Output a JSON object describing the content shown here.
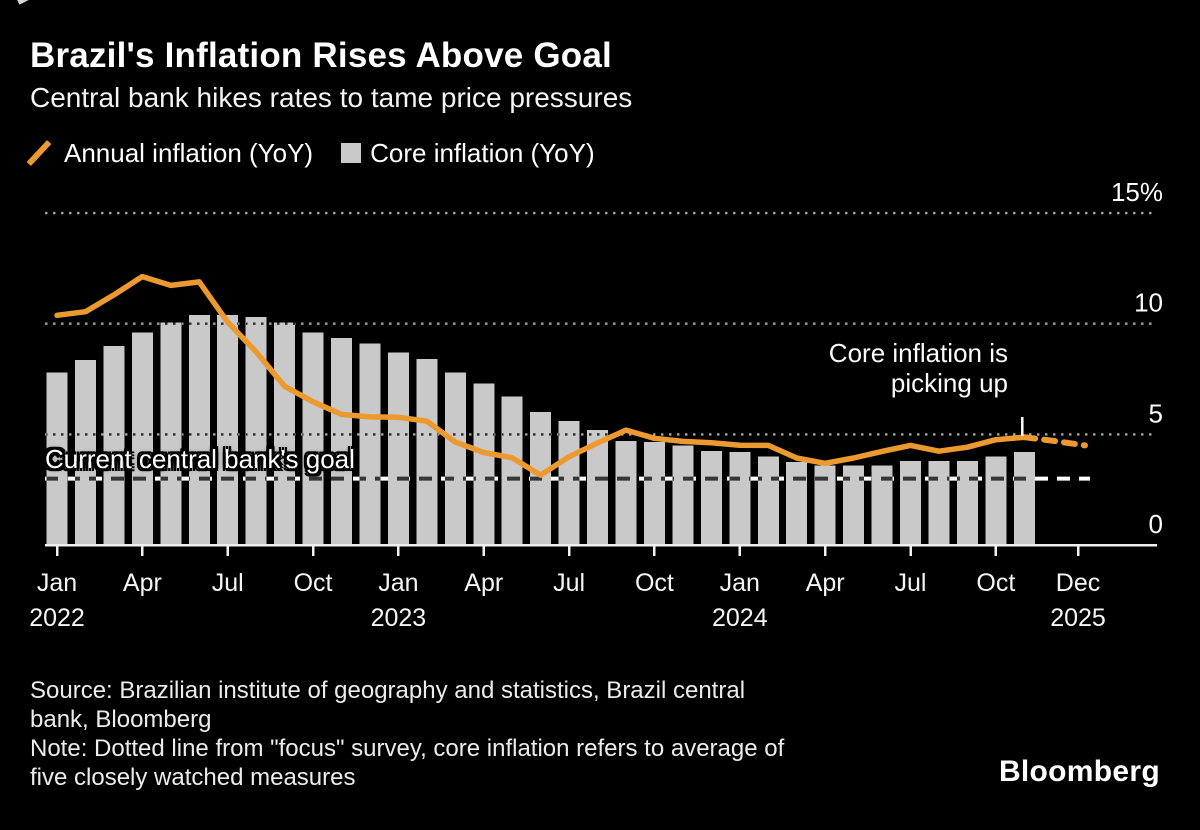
{
  "header": {
    "title": "Brazil's Inflation Rises Above Goal",
    "subtitle": "Central bank hikes rates to tame price pressures"
  },
  "legend": {
    "annual": {
      "label": "Annual inflation (YoY)",
      "swatch": "orange-line-slash",
      "color": "#EC9A2F"
    },
    "core": {
      "label": "Core inflation (YoY)",
      "swatch": "gray-square",
      "color": "#C9C9C9"
    }
  },
  "chart_data": {
    "type": "bar+line",
    "title": "Brazil's Inflation Rises Above Goal",
    "ylabel": "",
    "xlabel": "",
    "ylim": [
      0,
      15.8
    ],
    "grid": "dotted horizontal",
    "legend_position": "top-left",
    "months": [
      "Jan 2022",
      "Feb 2022",
      "Mar 2022",
      "Apr 2022",
      "May 2022",
      "Jun 2022",
      "Jul 2022",
      "Aug 2022",
      "Sep 2022",
      "Oct 2022",
      "Nov 2022",
      "Dec 2022",
      "Jan 2023",
      "Feb 2023",
      "Mar 2023",
      "Apr 2023",
      "May 2023",
      "Jun 2023",
      "Jul 2023",
      "Aug 2023",
      "Sep 2023",
      "Oct 2023",
      "Nov 2023",
      "Dec 2023",
      "Jan 2024",
      "Feb 2024",
      "Mar 2024",
      "Apr 2024",
      "May 2024",
      "Jun 2024",
      "Jul 2024",
      "Aug 2024",
      "Sep 2024",
      "Oct 2024",
      "Nov 2024"
    ],
    "series": {
      "annual_inflation_line": {
        "name": "Annual inflation (YoY)",
        "values": [
          10.38,
          10.54,
          11.3,
          12.13,
          11.73,
          11.89,
          10.07,
          8.73,
          7.17,
          6.47,
          5.9,
          5.79,
          5.77,
          5.6,
          4.65,
          4.18,
          3.94,
          3.16,
          3.99,
          4.61,
          5.19,
          4.82,
          4.68,
          4.62,
          4.51,
          4.5,
          3.93,
          3.69,
          3.93,
          4.23,
          4.5,
          4.24,
          4.42,
          4.76,
          4.87
        ]
      },
      "core_inflation_bars": {
        "name": "Core inflation (YoY)",
        "values": [
          7.8,
          8.35,
          9.0,
          9.6,
          10.05,
          10.4,
          10.4,
          10.3,
          10.05,
          9.6,
          9.35,
          9.1,
          8.7,
          8.4,
          7.8,
          7.3,
          6.7,
          6.0,
          5.6,
          5.2,
          4.7,
          4.65,
          4.5,
          4.25,
          4.2,
          4.0,
          3.75,
          3.6,
          3.6,
          3.6,
          3.8,
          3.8,
          3.8,
          4.0,
          4.2
        ]
      },
      "forecast_dotted": {
        "name": "Focus survey forecast",
        "values": [
          4.87,
          4.7,
          4.5
        ],
        "end_label": "Dec 2025"
      }
    },
    "y_ticks": [
      {
        "label": "15%",
        "value": 15
      },
      {
        "label": "10",
        "value": 10
      },
      {
        "label": "5",
        "value": 5
      },
      {
        "label": "0",
        "value": 0
      }
    ],
    "x_ticks": [
      {
        "m": "Jan",
        "y": "2022",
        "i": 0
      },
      {
        "m": "Apr",
        "i": 3
      },
      {
        "m": "Jul",
        "i": 6
      },
      {
        "m": "Oct",
        "i": 9
      },
      {
        "m": "Jan",
        "y": "2023",
        "i": 12
      },
      {
        "m": "Apr",
        "i": 15
      },
      {
        "m": "Jul",
        "i": 18
      },
      {
        "m": "Oct",
        "i": 21
      },
      {
        "m": "Jan",
        "y": "2024",
        "i": 24
      },
      {
        "m": "Apr",
        "i": 27
      },
      {
        "m": "Jul",
        "i": 30
      },
      {
        "m": "Oct",
        "i": 33
      },
      {
        "m": "Dec",
        "y": "2025",
        "end": true
      }
    ],
    "goal_line": {
      "label": "Current central bank's goal",
      "value": 3
    },
    "colors": {
      "background": "#000000",
      "line": "#EC9A2F",
      "bar": "#C9C9C9",
      "grid": "#A0A0A0",
      "goal": "#FFFFFF"
    }
  },
  "annotations": {
    "core_note": {
      "lines": [
        "Core inflation is",
        "picking up"
      ]
    }
  },
  "footer": {
    "source": {
      "lines": [
        "Source: Brazilian institute of geography and statistics, Brazil central",
        "bank, Bloomberg"
      ]
    },
    "note": {
      "lines": [
        "Note: Dotted line from \"focus\" survey, core inflation refers to average of",
        "five closely watched measures"
      ]
    },
    "logo": "Bloomberg"
  }
}
